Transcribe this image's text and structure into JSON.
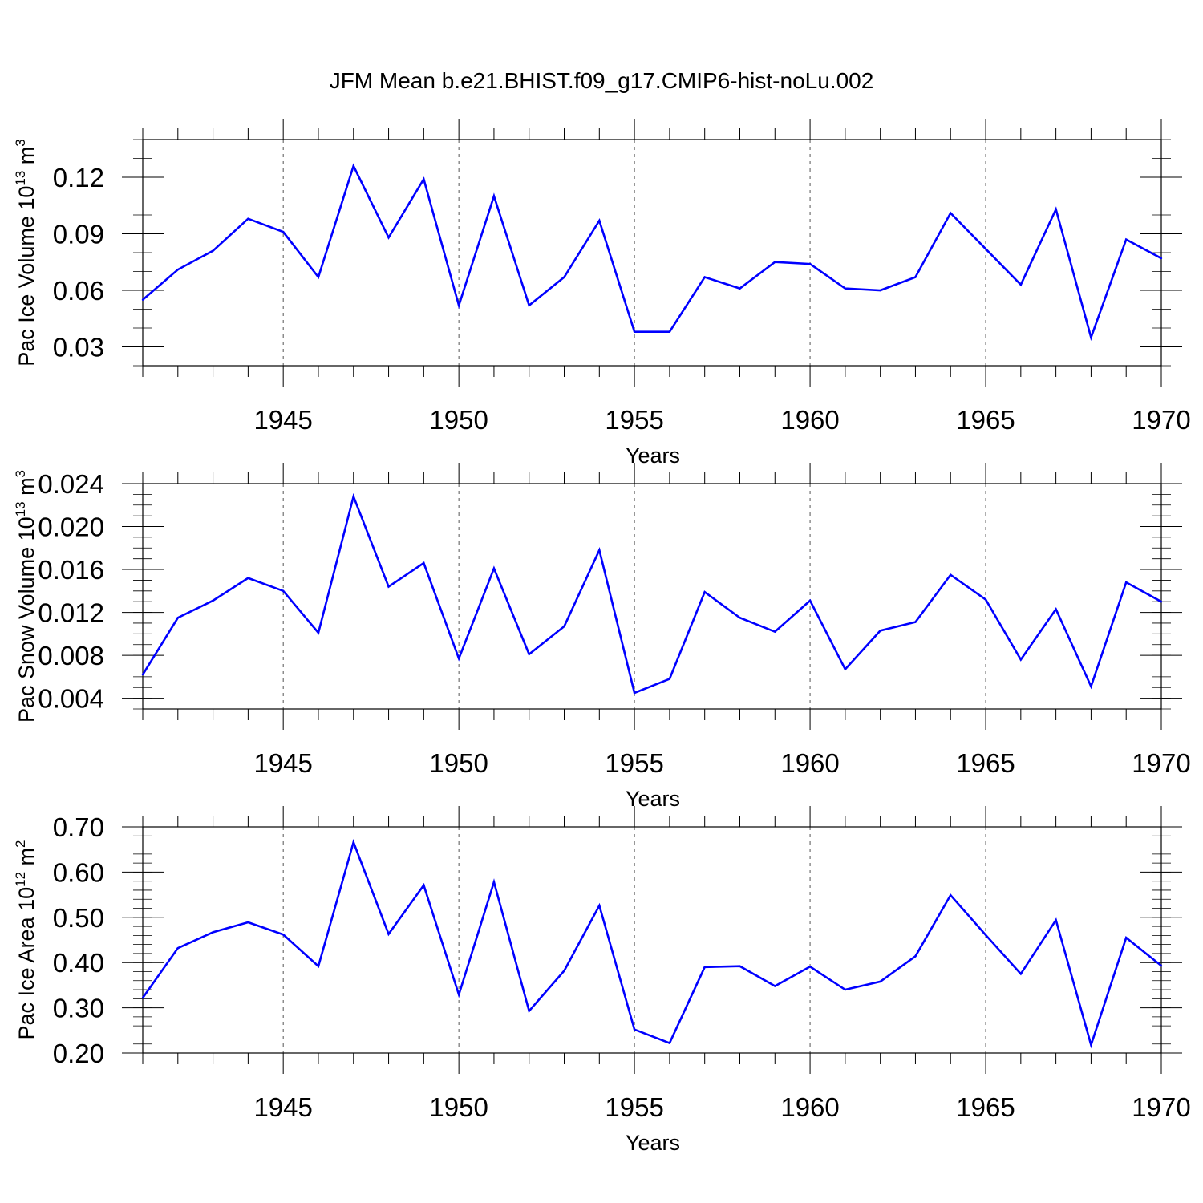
{
  "title": "JFM Mean b.e21.BHIST.f09_g17.CMIP6-hist-noLu.002",
  "colors": {
    "line": "#0000ff",
    "axis": "#000000",
    "grid": "#555555"
  },
  "chart_data": [
    {
      "type": "line",
      "ylabel_main": "Pac Ice Volume 10",
      "ylabel_exp": "13",
      "ylabel_unit": " m",
      "ylabel_unit_exp": "3",
      "xlabel": "Years",
      "xlim": [
        1941,
        1970
      ],
      "ylim": [
        0.02,
        0.14
      ],
      "yticks": [
        0.03,
        0.06,
        0.09,
        0.12
      ],
      "ytick_labels": [
        "0.03",
        "0.06",
        "0.09",
        "0.12"
      ],
      "yminor_step": 0.01,
      "xticks": [
        1945,
        1950,
        1955,
        1960,
        1965,
        1970
      ],
      "xtick_labels": [
        "1945",
        "1950",
        "1955",
        "1960",
        "1965",
        "1970"
      ],
      "x": [
        1941,
        1942,
        1943,
        1944,
        1945,
        1946,
        1947,
        1948,
        1949,
        1950,
        1951,
        1952,
        1953,
        1954,
        1955,
        1956,
        1957,
        1958,
        1959,
        1960,
        1961,
        1962,
        1963,
        1964,
        1965,
        1966,
        1967,
        1968,
        1969,
        1970
      ],
      "series": [
        {
          "name": "Pac Ice Volume",
          "values": [
            0.055,
            0.071,
            0.081,
            0.098,
            0.091,
            0.067,
            0.126,
            0.088,
            0.119,
            0.052,
            0.11,
            0.052,
            0.067,
            0.097,
            0.038,
            0.038,
            0.067,
            0.061,
            0.075,
            0.074,
            0.061,
            0.06,
            0.067,
            0.101,
            0.082,
            0.063,
            0.103,
            0.035,
            0.087,
            0.077
          ]
        }
      ]
    },
    {
      "type": "line",
      "ylabel_main": "Pac Snow Volume 10",
      "ylabel_exp": "13",
      "ylabel_unit": " m",
      "ylabel_unit_exp": "3",
      "xlabel": "Years",
      "xlim": [
        1941,
        1970
      ],
      "ylim": [
        0.003,
        0.024
      ],
      "yticks": [
        0.004,
        0.008,
        0.012,
        0.016,
        0.02,
        0.024
      ],
      "ytick_labels": [
        "0.004",
        "0.008",
        "0.012",
        "0.016",
        "0.020",
        "0.024"
      ],
      "yminor_step": 0.001,
      "xticks": [
        1945,
        1950,
        1955,
        1960,
        1965,
        1970
      ],
      "xtick_labels": [
        "1945",
        "1950",
        "1955",
        "1960",
        "1965",
        "1970"
      ],
      "x": [
        1941,
        1942,
        1943,
        1944,
        1945,
        1946,
        1947,
        1948,
        1949,
        1950,
        1951,
        1952,
        1953,
        1954,
        1955,
        1956,
        1957,
        1958,
        1959,
        1960,
        1961,
        1962,
        1963,
        1964,
        1965,
        1966,
        1967,
        1968,
        1969,
        1970
      ],
      "series": [
        {
          "name": "Pac Snow Volume",
          "values": [
            0.0062,
            0.0115,
            0.0131,
            0.0152,
            0.014,
            0.0101,
            0.0228,
            0.0144,
            0.0166,
            0.0077,
            0.0161,
            0.0081,
            0.0107,
            0.0178,
            0.0045,
            0.0058,
            0.0139,
            0.0115,
            0.0102,
            0.0131,
            0.0067,
            0.0103,
            0.0111,
            0.0155,
            0.0132,
            0.0076,
            0.0123,
            0.0051,
            0.0148,
            0.013
          ]
        }
      ]
    },
    {
      "type": "line",
      "ylabel_main": "Pac Ice Area 10",
      "ylabel_exp": "12",
      "ylabel_unit": " m",
      "ylabel_unit_exp": "2",
      "xlabel": "Years",
      "xlim": [
        1941,
        1970
      ],
      "ylim": [
        0.2,
        0.7
      ],
      "yticks": [
        0.2,
        0.3,
        0.4,
        0.5,
        0.6,
        0.7
      ],
      "ytick_labels": [
        "0.20",
        "0.30",
        "0.40",
        "0.50",
        "0.60",
        "0.70"
      ],
      "yminor_step": 0.02,
      "xticks": [
        1945,
        1950,
        1955,
        1960,
        1965,
        1970
      ],
      "xtick_labels": [
        "1945",
        "1950",
        "1955",
        "1960",
        "1965",
        "1970"
      ],
      "x": [
        1941,
        1942,
        1943,
        1944,
        1945,
        1946,
        1947,
        1948,
        1949,
        1950,
        1951,
        1952,
        1953,
        1954,
        1955,
        1956,
        1957,
        1958,
        1959,
        1960,
        1961,
        1962,
        1963,
        1964,
        1965,
        1966,
        1967,
        1968,
        1969,
        1970
      ],
      "series": [
        {
          "name": "Pac Ice Area",
          "values": [
            0.322,
            0.432,
            0.467,
            0.489,
            0.462,
            0.392,
            0.666,
            0.463,
            0.571,
            0.329,
            0.578,
            0.293,
            0.382,
            0.526,
            0.252,
            0.222,
            0.39,
            0.392,
            0.348,
            0.391,
            0.34,
            0.358,
            0.414,
            0.549,
            0.461,
            0.375,
            0.494,
            0.218,
            0.455,
            0.393
          ]
        }
      ]
    }
  ]
}
